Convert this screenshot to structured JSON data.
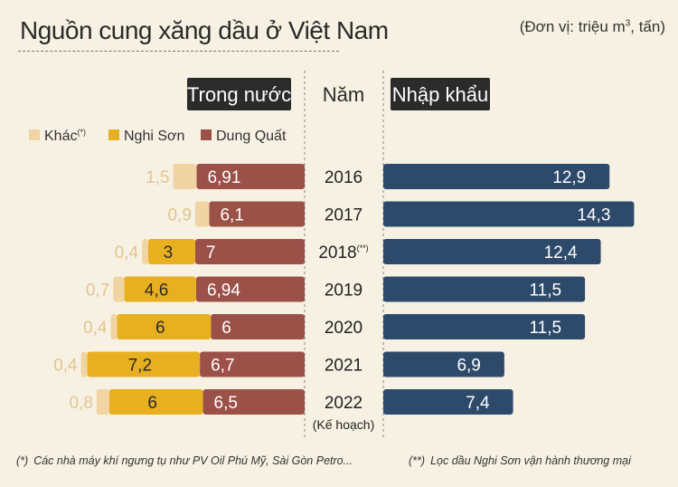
{
  "title": "Nguồn cung xăng dầu ở Việt Nam",
  "unit": {
    "prefix": "(Đơn vị: triệu m",
    "sup": "3",
    "suffix": ", tấn)"
  },
  "chart_data": {
    "type": "bar",
    "orientation": "horizontal",
    "layout": "butterfly",
    "left_panel_title": "Trong nước",
    "center_title": "Năm",
    "right_panel_title": "Nhập khẩu",
    "categories": [
      "2016",
      "2017",
      "2018",
      "2019",
      "2020",
      "2021",
      "2022"
    ],
    "category_marks": [
      "",
      "",
      "(**)",
      "",
      "",
      "",
      ""
    ],
    "category_sublabels": [
      "",
      "",
      "",
      "",
      "",
      "",
      "(Kế hoạch)"
    ],
    "legend_position": "top-left",
    "domestic_series": [
      {
        "name": "Dung Quất",
        "values": [
          6.91,
          6.1,
          7,
          6.94,
          6,
          6.7,
          6.5
        ],
        "labels": [
          "6,91",
          "6,1",
          "7",
          "6,94",
          "6",
          "6,7",
          "6,5"
        ],
        "color": "#9b5148"
      },
      {
        "name": "Nghi Sơn",
        "values": [
          0,
          0,
          3,
          4.6,
          6,
          7.2,
          6
        ],
        "labels": [
          "",
          "",
          "3",
          "4,6",
          "6",
          "7,2",
          "6"
        ],
        "color": "#e8b020"
      },
      {
        "name": "Khác",
        "name_mark": "(*)",
        "values": [
          1.5,
          0.9,
          0.4,
          0.7,
          0.4,
          0.4,
          0.8
        ],
        "labels": [
          "1,5",
          "0,9",
          "0,4",
          "0,7",
          "0,4",
          "0,4",
          "0,8"
        ],
        "color": "#f1d4a4"
      }
    ],
    "import_series": {
      "name": "Nhập khẩu",
      "values": [
        12.9,
        14.3,
        12.4,
        11.5,
        11.5,
        6.9,
        7.4
      ],
      "labels": [
        "12,9",
        "14,3",
        "12,4",
        "11,5",
        "11,5",
        "6,9",
        "7,4"
      ],
      "color": "#2e4a6b"
    },
    "grid": false
  },
  "notes": [
    {
      "mark": "(*)",
      "text": "Các nhà máy khí ngưng tụ như PV Oil Phú Mỹ, Sài Gòn Petro..."
    },
    {
      "mark": "(**)",
      "text": "Lọc dầu Nghi Sơn vận hành thương mại"
    }
  ],
  "colors": {
    "background": "#f6f1e2",
    "header_bg": "#2b2b2b",
    "header_text": "#ffffff"
  }
}
